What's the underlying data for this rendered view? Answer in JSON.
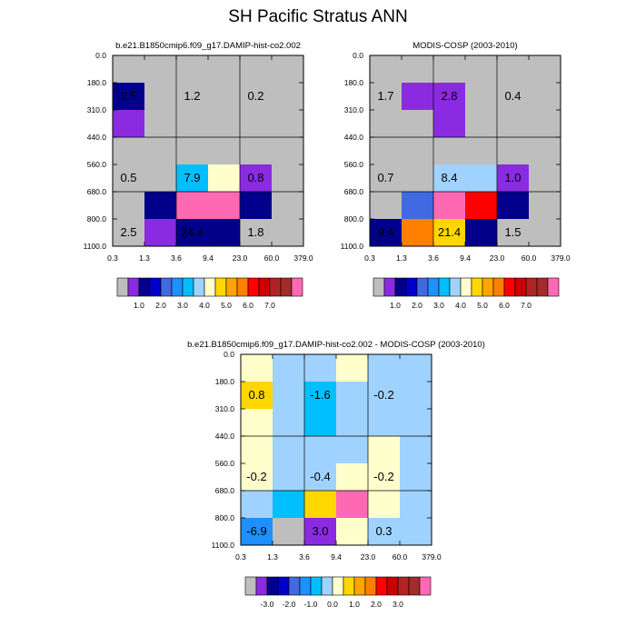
{
  "figure_title": "SH Pacific Stratus ANN",
  "chart_data": [
    {
      "type": "heatmap",
      "title": "b.e21.B1850cmip6.f09_g17.DAMIP-hist-co2.002",
      "x_tick_labels": [
        "0.3",
        "1.3",
        "3.6",
        "9.4",
        "23.0",
        "60.0",
        "379.0"
      ],
      "y_tick_labels": [
        "0.0",
        "180.0",
        "310.0",
        "440.0",
        "560.0",
        "680.0",
        "800.0",
        "1100.0"
      ],
      "grid": true,
      "cells": [
        [
          "#BEBEBE",
          "#BEBEBE",
          "#BEBEBE",
          "#BEBEBE",
          "#BEBEBE",
          "#BEBEBE"
        ],
        [
          "#00008B",
          "#BEBEBE",
          "#BEBEBE",
          "#BEBEBE",
          "#BEBEBE",
          "#BEBEBE"
        ],
        [
          "#8A2BE2",
          "#BEBEBE",
          "#BEBEBE",
          "#BEBEBE",
          "#BEBEBE",
          "#BEBEBE"
        ],
        [
          "#BEBEBE",
          "#BEBEBE",
          "#BEBEBE",
          "#BEBEBE",
          "#BEBEBE",
          "#BEBEBE"
        ],
        [
          "#BEBEBE",
          "#BEBEBE",
          "#00BFFF",
          "#FFFFCC",
          "#8A2BE2",
          "#BEBEBE"
        ],
        [
          "#BEBEBE",
          "#00008B",
          "#FF69B4",
          "#FF69B4",
          "#00008B",
          "#BEBEBE"
        ],
        [
          "#BEBEBE",
          "#8A2BE2",
          "#00008B",
          "#00008B",
          "#BEBEBE",
          "#BEBEBE"
        ]
      ],
      "value_labels": [
        {
          "text": "2.5",
          "col": 0,
          "row": 0
        },
        {
          "text": "1.2",
          "col": 1,
          "row": 0
        },
        {
          "text": "0.2",
          "col": 2,
          "row": 0
        },
        {
          "text": "0.5",
          "col": 0,
          "row": 1
        },
        {
          "text": "7.9",
          "col": 1,
          "row": 1
        },
        {
          "text": "0.8",
          "col": 2,
          "row": 1
        },
        {
          "text": "2.5",
          "col": 0,
          "row": 2
        },
        {
          "text": "24.4",
          "col": 1,
          "row": 2
        },
        {
          "text": "1.8",
          "col": 2,
          "row": 2
        }
      ],
      "colorbar": {
        "colors": [
          "#BEBEBE",
          "#8A2BE2",
          "#00008B",
          "#0000CD",
          "#4169E1",
          "#1E90FF",
          "#00BFFF",
          "#A0D2FF",
          "#FFFFCC",
          "#FFD700",
          "#FFA500",
          "#FF7F00",
          "#FF0000",
          "#CD0000",
          "#B22222",
          "#A52A2A",
          "#FF69B4"
        ],
        "labels": [
          "1.0",
          "2.0",
          "3.0",
          "4.0",
          "5.0",
          "6.0",
          "7.0"
        ],
        "label_boundaries": [
          2,
          4,
          6,
          8,
          10,
          12,
          14
        ]
      }
    },
    {
      "type": "heatmap",
      "title": "MODIS-COSP (2003-2010)",
      "x_tick_labels": [
        "0.3",
        "1.3",
        "3.6",
        "9.4",
        "23.0",
        "60.0",
        "379.0"
      ],
      "y_tick_labels": [
        "0.0",
        "180.0",
        "310.0",
        "440.0",
        "560.0",
        "680.0",
        "800.0",
        "1100.0"
      ],
      "grid": true,
      "cells": [
        [
          "#BEBEBE",
          "#BEBEBE",
          "#BEBEBE",
          "#BEBEBE",
          "#BEBEBE",
          "#BEBEBE"
        ],
        [
          "#BEBEBE",
          "#8A2BE2",
          "#8A2BE2",
          "#BEBEBE",
          "#BEBEBE",
          "#BEBEBE"
        ],
        [
          "#BEBEBE",
          "#BEBEBE",
          "#8A2BE2",
          "#BEBEBE",
          "#BEBEBE",
          "#BEBEBE"
        ],
        [
          "#BEBEBE",
          "#BEBEBE",
          "#BEBEBE",
          "#BEBEBE",
          "#BEBEBE",
          "#BEBEBE"
        ],
        [
          "#BEBEBE",
          "#BEBEBE",
          "#A0D2FF",
          "#A0D2FF",
          "#8A2BE2",
          "#BEBEBE"
        ],
        [
          "#BEBEBE",
          "#4169E1",
          "#FF69B4",
          "#FF0000",
          "#00008B",
          "#BEBEBE"
        ],
        [
          "#00008B",
          "#FF7F00",
          "#FFD700",
          "#00008B",
          "#BEBEBE",
          "#BEBEBE"
        ]
      ],
      "value_labels": [
        {
          "text": "1.7",
          "col": 0,
          "row": 0
        },
        {
          "text": "2.8",
          "col": 1,
          "row": 0
        },
        {
          "text": "0.4",
          "col": 2,
          "row": 0
        },
        {
          "text": "0.7",
          "col": 0,
          "row": 1
        },
        {
          "text": "8.4",
          "col": 1,
          "row": 1
        },
        {
          "text": "1.0",
          "col": 2,
          "row": 1
        },
        {
          "text": "9.4",
          "col": 0,
          "row": 2
        },
        {
          "text": "21.4",
          "col": 1,
          "row": 2
        },
        {
          "text": "1.5",
          "col": 2,
          "row": 2
        }
      ],
      "colorbar": {
        "colors": [
          "#BEBEBE",
          "#8A2BE2",
          "#00008B",
          "#0000CD",
          "#4169E1",
          "#1E90FF",
          "#00BFFF",
          "#A0D2FF",
          "#FFFFCC",
          "#FFD700",
          "#FFA500",
          "#FF7F00",
          "#FF0000",
          "#CD0000",
          "#B22222",
          "#A52A2A",
          "#FF69B4"
        ],
        "labels": [
          "1.0",
          "2.0",
          "3.0",
          "4.0",
          "5.0",
          "6.0",
          "7.0"
        ],
        "label_boundaries": [
          2,
          4,
          6,
          8,
          10,
          12,
          14
        ]
      }
    },
    {
      "type": "heatmap",
      "title": "b.e21.B1850cmip6.f09_g17.DAMIP-hist-co2.002 - MODIS-COSP (2003-2010)",
      "x_tick_labels": [
        "0.3",
        "1.3",
        "3.6",
        "9.4",
        "23.0",
        "60.0",
        "379.0"
      ],
      "y_tick_labels": [
        "0.0",
        "180.0",
        "310.0",
        "440.0",
        "560.0",
        "680.0",
        "800.0",
        "1100.0"
      ],
      "grid": true,
      "cells": [
        [
          "#FFFFCC",
          "#A0D2FF",
          "#A0D2FF",
          "#FFFFCC",
          "#A0D2FF",
          "#A0D2FF"
        ],
        [
          "#FFD700",
          "#A0D2FF",
          "#00BFFF",
          "#A0D2FF",
          "#A0D2FF",
          "#A0D2FF"
        ],
        [
          "#FFFFCC",
          "#A0D2FF",
          "#00BFFF",
          "#A0D2FF",
          "#A0D2FF",
          "#A0D2FF"
        ],
        [
          "#FFFFCC",
          "#A0D2FF",
          "#A0D2FF",
          "#A0D2FF",
          "#FFFFCC",
          "#A0D2FF"
        ],
        [
          "#FFFFCC",
          "#A0D2FF",
          "#A0D2FF",
          "#FFFFCC",
          "#FFFFCC",
          "#A0D2FF"
        ],
        [
          "#A0D2FF",
          "#00BFFF",
          "#FFD700",
          "#FF69B4",
          "#FFFFCC",
          "#A0D2FF"
        ],
        [
          "#1E90FF",
          "#BEBEBE",
          "#8A2BE2",
          "#FFFFCC",
          "#A0D2FF",
          "#A0D2FF"
        ]
      ],
      "value_labels": [
        {
          "text": "0.8",
          "col": 0,
          "row": 0
        },
        {
          "text": "-1.6",
          "col": 1,
          "row": 0
        },
        {
          "text": "-0.2",
          "col": 2,
          "row": 0
        },
        {
          "text": "-0.2",
          "col": 0,
          "row": 1
        },
        {
          "text": "-0.4",
          "col": 1,
          "row": 1
        },
        {
          "text": "-0.2",
          "col": 2,
          "row": 1
        },
        {
          "text": "-6.9",
          "col": 0,
          "row": 2
        },
        {
          "text": "3.0",
          "col": 1,
          "row": 2
        },
        {
          "text": "0.3",
          "col": 2,
          "row": 2
        }
      ],
      "colorbar": {
        "colors": [
          "#BEBEBE",
          "#8A2BE2",
          "#00008B",
          "#0000CD",
          "#4169E1",
          "#1E90FF",
          "#00BFFF",
          "#A0D2FF",
          "#FFFFCC",
          "#FFD700",
          "#FFA500",
          "#FF7F00",
          "#FF0000",
          "#CD0000",
          "#B22222",
          "#A52A2A",
          "#FF69B4"
        ],
        "labels": [
          "-3.0",
          "-2.0",
          "-1.0",
          "0.0",
          "1.0",
          "2.0",
          "3.0"
        ],
        "label_boundaries": [
          2,
          4,
          6,
          8,
          10,
          12,
          14
        ]
      }
    }
  ]
}
